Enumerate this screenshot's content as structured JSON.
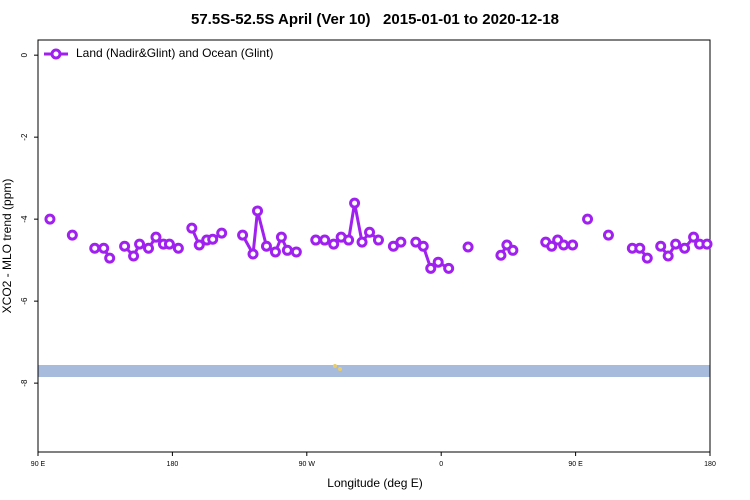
{
  "chart_data": {
    "type": "line",
    "title": "57.5S-52.5S April (Ver 10)   2015-01-01 to 2020-12-18",
    "x_label": "Longitude (deg E)",
    "y_label": "XCO2 - MLO trend (ppm)",
    "xlim": [
      90,
      540
    ],
    "xticks": [
      {
        "value": 90,
        "label": "90 E"
      },
      180,
      {
        "value": 270,
        "label": "90 W"
      },
      {
        "value": 360,
        "label": "0"
      },
      {
        "value": 450,
        "label": "90 E"
      },
      {
        "value": 540,
        "label": "180"
      }
    ],
    "ylim": [
      -9.68,
      0.37
    ],
    "yticks": [
      0,
      -2,
      -4,
      -6,
      -8
    ],
    "legend": "top-left",
    "series": [
      {
        "name": "Land (Nadir&Glint) and Ocean (Glint)",
        "color": "#a020f0",
        "x": [
          98,
          null,
          113,
          null,
          128,
          134,
          138,
          null,
          148,
          154,
          158,
          164,
          169,
          174,
          178,
          184,
          null,
          193,
          198,
          203,
          207,
          213,
          null,
          227,
          234,
          237,
          243,
          249,
          253,
          257,
          263,
          null,
          276,
          282,
          288,
          293,
          298,
          302,
          307,
          312,
          318,
          null,
          328,
          333,
          null,
          343,
          348,
          353,
          358,
          365,
          null,
          378,
          null,
          400,
          404,
          408,
          null,
          430,
          434,
          438,
          442,
          448,
          null,
          458,
          null,
          472,
          null,
          488,
          493,
          498,
          null,
          507,
          512,
          517,
          523,
          529,
          533,
          538
        ],
        "values": [
          -4.0,
          null,
          -4.39,
          null,
          -4.71,
          -4.71,
          -4.95,
          null,
          -4.66,
          -4.9,
          -4.61,
          -4.71,
          -4.44,
          -4.61,
          -4.61,
          -4.71,
          null,
          -4.22,
          -4.63,
          -4.51,
          -4.49,
          -4.34,
          null,
          -4.39,
          -4.85,
          -3.8,
          -4.66,
          -4.8,
          -4.44,
          -4.76,
          -4.8,
          null,
          -4.51,
          -4.51,
          -4.61,
          -4.44,
          -4.51,
          -3.61,
          -4.56,
          -4.32,
          -4.51,
          null,
          -4.66,
          -4.56,
          null,
          -4.56,
          -4.66,
          -5.2,
          -5.05,
          -5.2,
          null,
          -4.68,
          null,
          -4.88,
          -4.63,
          -4.76,
          null,
          -4.56,
          -4.66,
          -4.51,
          -4.63,
          -4.63,
          null,
          -4.0,
          null,
          -4.39,
          null,
          -4.71,
          -4.71,
          -4.95,
          null,
          -4.66,
          -4.9,
          -4.61,
          -4.71,
          -4.44,
          -4.61,
          -4.61
        ]
      }
    ]
  }
}
